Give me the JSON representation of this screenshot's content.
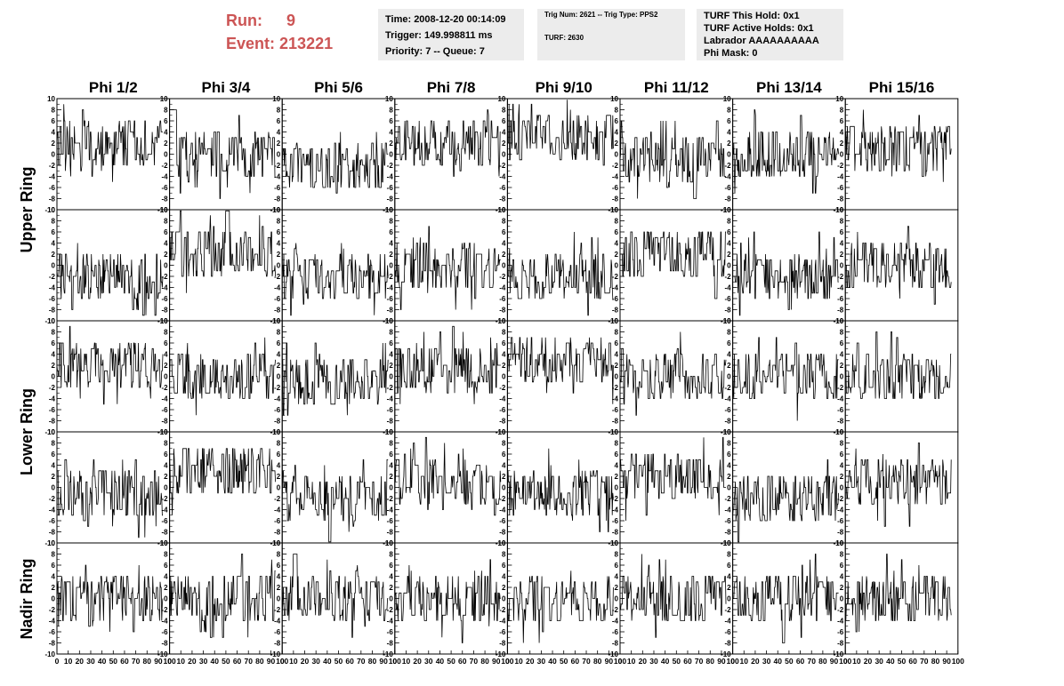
{
  "header": {
    "run_label": "Run:",
    "run_value": "9",
    "event_label": "Event:",
    "event_value": "213221"
  },
  "time_box": {
    "time": "Time: 2008-12-20 00:14:09",
    "trigger": "Trigger: 149.998811 ms",
    "priority": "Priority: 7 -- Queue: 7"
  },
  "trig_box": {
    "trig": "Trig Num: 2621 -- Trig Type: PPS2",
    "turf": "TURF: 2630"
  },
  "turf_box": {
    "this_hold": "TURF This Hold: 0x1",
    "active_holds": "TURF Active Holds: 0x1",
    "labrador": "Labrador AAAAAAAAAA",
    "phi_mask": "Phi Mask: 0"
  },
  "chart_data": {
    "type": "line",
    "columns": [
      "Phi 1/2",
      "Phi 3/4",
      "Phi 5/6",
      "Phi 7/8",
      "Phi 9/10",
      "Phi 11/12",
      "Phi 13/14",
      "Phi 15/16"
    ],
    "row_groups": [
      "Upper Ring",
      "Lower Ring",
      "Nadir Ring"
    ],
    "xlim": [
      0,
      100
    ],
    "ylim": [
      -10,
      10
    ],
    "x_ticks": [
      0,
      10,
      20,
      30,
      40,
      50,
      60,
      70,
      80,
      90,
      100
    ],
    "x_tick_labels": [
      "0",
      "10",
      "20",
      "30",
      "40",
      "50",
      "60",
      "70",
      "80",
      "90",
      "100"
    ],
    "y_ticks": [
      -10,
      -8,
      -6,
      -4,
      -2,
      0,
      2,
      4,
      6,
      8,
      10
    ],
    "y_tick_labels": [
      "-10",
      "-8",
      "-6",
      "-4",
      "-2",
      "0",
      "2",
      "4",
      "6",
      "8",
      "10"
    ],
    "x": [
      0,
      94
    ],
    "grid": false,
    "panel_baselines": [
      [
        2,
        0,
        -2,
        2,
        3,
        -1,
        0,
        1
      ],
      [
        -2,
        2,
        -2,
        0,
        -2,
        2,
        -2,
        0
      ],
      [
        2,
        0,
        -1,
        1,
        3,
        0,
        0,
        0
      ],
      [
        -1,
        3,
        -2,
        1,
        -1,
        2,
        -2,
        1
      ],
      [
        0,
        0,
        0,
        0,
        0,
        0,
        0,
        0
      ]
    ]
  }
}
